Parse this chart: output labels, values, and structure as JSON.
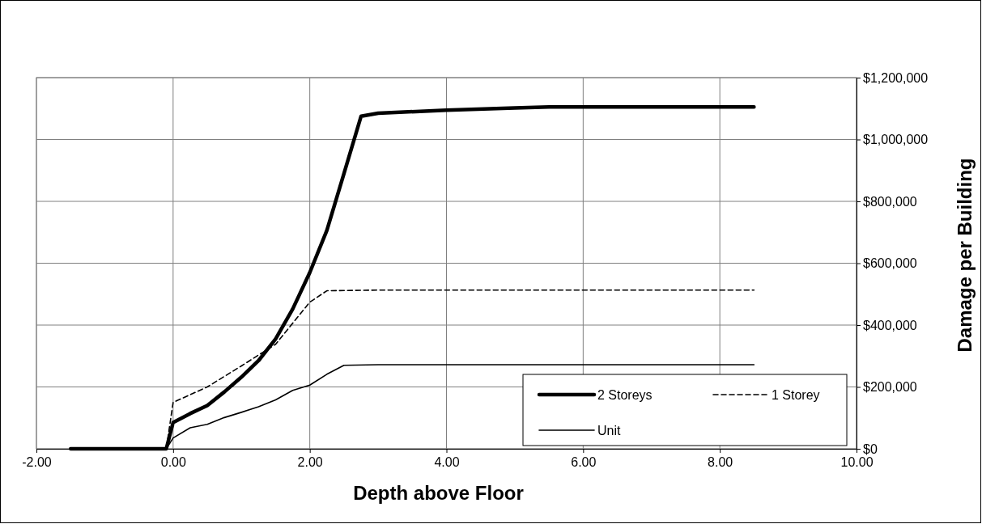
{
  "chart_data": {
    "type": "line",
    "xlabel": "Depth above Floor",
    "ylabel": "Damage per Building",
    "xlim": [
      -2,
      10
    ],
    "xticks": [
      {
        "value": -2,
        "label": "-2.00"
      },
      {
        "value": 0,
        "label": "0.00"
      },
      {
        "value": 2,
        "label": "2.00"
      },
      {
        "value": 4,
        "label": "4.00"
      },
      {
        "value": 6,
        "label": "6.00"
      },
      {
        "value": 8,
        "label": "8.00"
      },
      {
        "value": 10,
        "label": "10.00"
      }
    ],
    "ylim": [
      0,
      1200000
    ],
    "yticks": [
      {
        "value": 0,
        "label": "$0"
      },
      {
        "value": 200000,
        "label": "$200,000"
      },
      {
        "value": 400000,
        "label": "$400,000"
      },
      {
        "value": 600000,
        "label": "$600,000"
      },
      {
        "value": 800000,
        "label": "$800,000"
      },
      {
        "value": 1000000,
        "label": "$1,000,000"
      },
      {
        "value": 1200000,
        "label": "$1,200,000"
      }
    ],
    "grid": true,
    "legend": "bottom right",
    "marker": "none",
    "series": [
      {
        "name": "2 Storeys",
        "color": "#000000",
        "line_style": "solid",
        "x": [
          -1.5,
          -0.1,
          0,
          0.25,
          0.5,
          0.75,
          1,
          1.25,
          1.5,
          1.75,
          2,
          2.25,
          2.5,
          2.75,
          3,
          4,
          5,
          5.5,
          8.5
        ],
        "values": [
          0,
          0,
          85000,
          114000,
          140000,
          184000,
          232000,
          285000,
          355000,
          452000,
          570000,
          706000,
          890000,
          1075000,
          1085000,
          1095000,
          1102000,
          1105000,
          1105000
        ]
      },
      {
        "name": "1 Storey",
        "color": "#000000",
        "line_style": "dashed",
        "x": [
          -1.5,
          -0.1,
          0,
          0.5,
          1,
          1.5,
          2,
          2.25,
          3,
          8.5
        ],
        "values": [
          0,
          0,
          150000,
          200000,
          268000,
          338000,
          474000,
          511000,
          513000,
          513000
        ]
      },
      {
        "name": "Unit",
        "color": "#000000",
        "line_style": "solid",
        "x": [
          -1.5,
          -0.1,
          0,
          0.25,
          0.5,
          0.75,
          1,
          1.25,
          1.5,
          1.75,
          2,
          2.25,
          2.5,
          3,
          8.5
        ],
        "values": [
          0,
          0,
          35000,
          68000,
          79000,
          101000,
          118000,
          136000,
          158000,
          189000,
          206000,
          241000,
          270000,
          272000,
          272000
        ]
      }
    ]
  }
}
